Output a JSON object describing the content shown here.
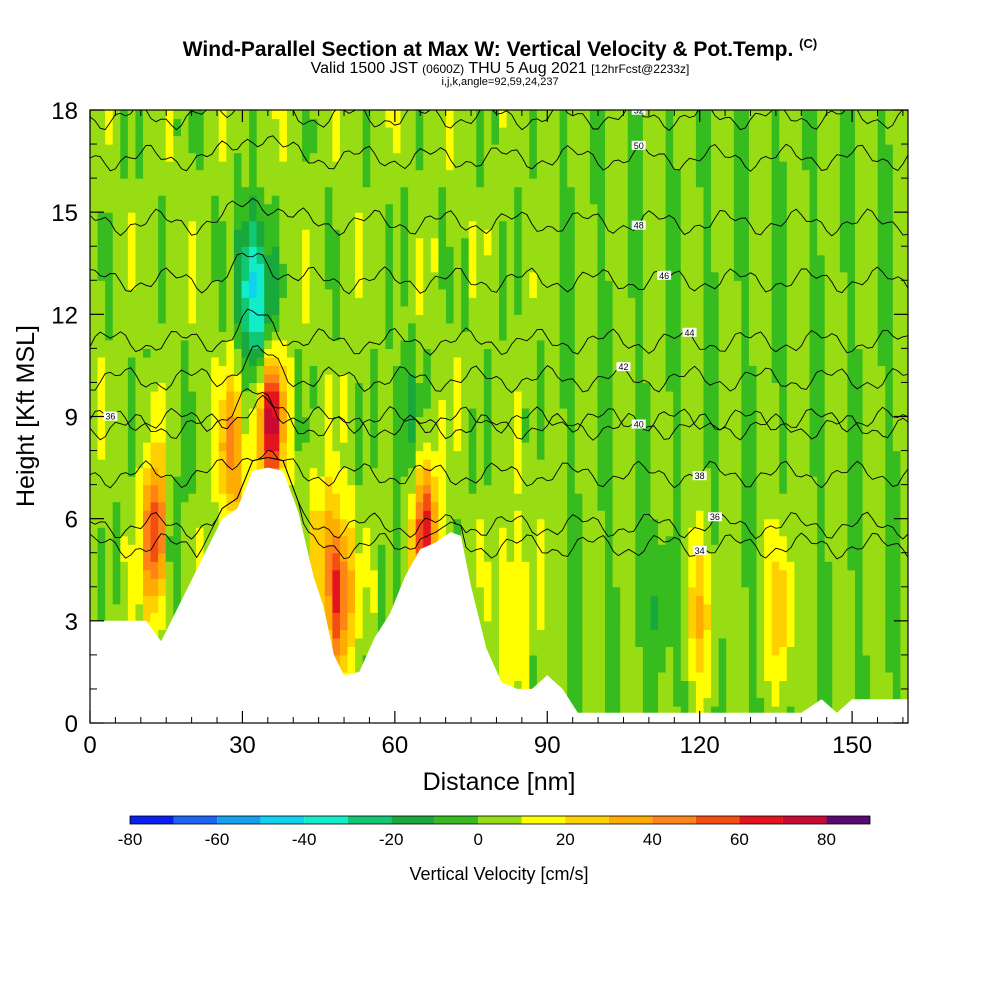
{
  "header": {
    "title": "Wind-Parallel Section at Max W: Vertical Velocity & Pot.Temp.",
    "title_mark": "(C)",
    "valid_a": "Valid 1500 JST",
    "valid_utc": "(0600Z)",
    "valid_b": "THU 5 Aug 2021",
    "forecast": "[12hrFcst@2233z]",
    "indices": "i,j,k,angle=92,59,24,237"
  },
  "chart_data": {
    "type": "heatmap",
    "title": "Wind-Parallel Section at Max W: Vertical Velocity & Pot.Temp.",
    "xlabel": "Distance [nm]",
    "ylabel": "Height [Kft MSL]",
    "xlim": [
      0,
      161
    ],
    "ylim": [
      0,
      18
    ],
    "x_ticks": [
      "0",
      "30",
      "60",
      "90",
      "120",
      "150"
    ],
    "y_ticks": [
      "0",
      "3",
      "6",
      "9",
      "12",
      "15",
      "18"
    ],
    "colorbar": {
      "label": "Vertical Velocity [cm/s]",
      "ticks": [
        "-80",
        "-60",
        "-40",
        "-20",
        "0",
        "20",
        "40",
        "60",
        "80"
      ],
      "levels": [
        -80,
        -70,
        -60,
        -50,
        -40,
        -30,
        -20,
        -10,
        0,
        10,
        20,
        30,
        40,
        50,
        60,
        70,
        80,
        90
      ],
      "colors": [
        "#0a1ef0",
        "#1e64f5",
        "#14a0f0",
        "#0ed2f0",
        "#12ecc8",
        "#10c874",
        "#18a83c",
        "#36bc1e",
        "#98dc14",
        "#ffff00",
        "#ffd000",
        "#ffac00",
        "#ff8418",
        "#f44c12",
        "#e4141e",
        "#c80a32",
        "#96105a",
        "#5a0a6e"
      ]
    },
    "terrain_kft": [
      {
        "x": 0,
        "h": 3.0
      },
      {
        "x": 6,
        "h": 3.0
      },
      {
        "x": 11,
        "h": 3.0
      },
      {
        "x": 14,
        "h": 2.4
      },
      {
        "x": 18,
        "h": 3.6
      },
      {
        "x": 22,
        "h": 4.8
      },
      {
        "x": 26,
        "h": 6.0
      },
      {
        "x": 29,
        "h": 6.3
      },
      {
        "x": 32,
        "h": 7.4
      },
      {
        "x": 35,
        "h": 7.5
      },
      {
        "x": 38,
        "h": 7.4
      },
      {
        "x": 41,
        "h": 6.2
      },
      {
        "x": 44,
        "h": 4.3
      },
      {
        "x": 46,
        "h": 3.4
      },
      {
        "x": 48,
        "h": 2.0
      },
      {
        "x": 50,
        "h": 1.4
      },
      {
        "x": 53,
        "h": 1.5
      },
      {
        "x": 56,
        "h": 2.5
      },
      {
        "x": 59,
        "h": 3.2
      },
      {
        "x": 62,
        "h": 4.3
      },
      {
        "x": 65,
        "h": 5.1
      },
      {
        "x": 68,
        "h": 5.3
      },
      {
        "x": 71,
        "h": 5.6
      },
      {
        "x": 73,
        "h": 5.5
      },
      {
        "x": 75,
        "h": 4.0
      },
      {
        "x": 78,
        "h": 2.2
      },
      {
        "x": 81,
        "h": 1.2
      },
      {
        "x": 84,
        "h": 1.0
      },
      {
        "x": 87,
        "h": 1.0
      },
      {
        "x": 90,
        "h": 1.4
      },
      {
        "x": 93,
        "h": 1.0
      },
      {
        "x": 96,
        "h": 0.3
      },
      {
        "x": 140,
        "h": 0.3
      },
      {
        "x": 144,
        "h": 0.7
      },
      {
        "x": 147,
        "h": 0.3
      },
      {
        "x": 150,
        "h": 0.7
      },
      {
        "x": 161,
        "h": 0.7
      }
    ],
    "theta_levels": [
      {
        "label": "36",
        "base_kft": 8.9,
        "label_x": 4
      },
      {
        "label": "34",
        "base_kft": 5.2,
        "label_x": 120
      },
      {
        "label": "36",
        "base_kft": 5.8,
        "label_x": 123
      },
      {
        "label": "38",
        "base_kft": 7.3,
        "label_x": 120
      },
      {
        "label": "40",
        "base_kft": 8.7,
        "label_x": 108
      },
      {
        "label": "42",
        "base_kft": 10.1,
        "label_x": 105
      },
      {
        "label": "44",
        "base_kft": 11.2,
        "label_x": 118
      },
      {
        "label": "46",
        "base_kft": 13.0,
        "label_x": 113
      },
      {
        "label": "48",
        "base_kft": 14.7,
        "label_x": 108
      },
      {
        "label": "50",
        "base_kft": 16.6,
        "label_x": 108
      },
      {
        "label": "52",
        "base_kft": 17.8,
        "label_x": 108
      }
    ],
    "updraft_cores": [
      {
        "x": 13,
        "y": 5.5,
        "w": 65
      },
      {
        "x": 28,
        "y": 8.0,
        "w": 40
      },
      {
        "x": 35.5,
        "y": 9.0,
        "w": 75
      },
      {
        "x": 49,
        "y": 3.8,
        "w": 60
      },
      {
        "x": 66,
        "y": 5.5,
        "w": 58
      },
      {
        "x": 46,
        "y": 5.5,
        "w": 20
      },
      {
        "x": 83,
        "y": 3.5,
        "w": 22
      },
      {
        "x": 136,
        "y": 3.5,
        "w": 28
      },
      {
        "x": 120,
        "y": 3.2,
        "w": 25
      }
    ],
    "downdraft_cores": [
      {
        "x": 16,
        "y": 5.5,
        "w": -22
      },
      {
        "x": 31.5,
        "y": 13.0,
        "w": -45
      },
      {
        "x": 34.5,
        "y": 11.5,
        "w": -30
      },
      {
        "x": 62,
        "y": 8.8,
        "w": -18
      },
      {
        "x": 112,
        "y": 3.5,
        "w": -14
      }
    ]
  }
}
